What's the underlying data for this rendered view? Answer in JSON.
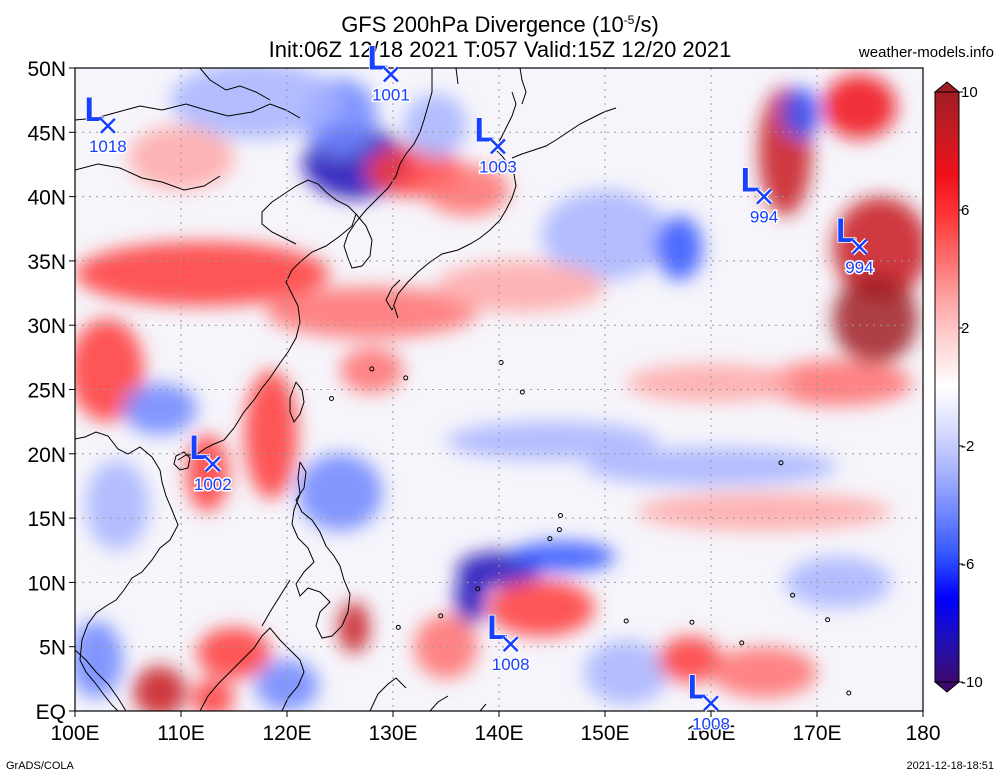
{
  "title": {
    "line1_prefix": "GFS 200hPa Divergence (10",
    "line1_exp": "-5",
    "line1_suffix": "/s)",
    "line2": "Init:06Z 12/18 2021 T:057 Valid:15Z 12/20 2021"
  },
  "site": "weather-models.info",
  "footer": {
    "left": "GrADS/COLA",
    "right": "2021-12-18-18:51"
  },
  "map": {
    "lon_range": [
      100,
      180
    ],
    "lat_range": [
      0,
      50
    ],
    "lon_ticks": [
      {
        "value": 100,
        "label": "100E"
      },
      {
        "value": 110,
        "label": "110E"
      },
      {
        "value": 120,
        "label": "120E"
      },
      {
        "value": 130,
        "label": "130E"
      },
      {
        "value": 140,
        "label": "140E"
      },
      {
        "value": 150,
        "label": "150E"
      },
      {
        "value": 160,
        "label": "160E"
      },
      {
        "value": 170,
        "label": "170E"
      },
      {
        "value": 180,
        "label": "180"
      }
    ],
    "lat_ticks": [
      {
        "value": 50,
        "label": "50N"
      },
      {
        "value": 45,
        "label": "45N"
      },
      {
        "value": 40,
        "label": "40N"
      },
      {
        "value": 35,
        "label": "35N"
      },
      {
        "value": 30,
        "label": "30N"
      },
      {
        "value": 25,
        "label": "25N"
      },
      {
        "value": 20,
        "label": "20N"
      },
      {
        "value": 15,
        "label": "15N"
      },
      {
        "value": 10,
        "label": "10N"
      },
      {
        "value": 5,
        "label": "5N"
      },
      {
        "value": 0,
        "label": "EQ"
      }
    ],
    "colors": {
      "positive": "#e8151b",
      "negative": "#1a2ce0",
      "coast": "#000000",
      "grid": "#9a9a9a"
    },
    "lows": [
      {
        "lon": 103.1,
        "lat": 45.5,
        "pressure": "1018"
      },
      {
        "lon": 129.8,
        "lat": 49.5,
        "pressure": "1001"
      },
      {
        "lon": 139.9,
        "lat": 43.9,
        "pressure": "1003"
      },
      {
        "lon": 165.0,
        "lat": 40.0,
        "pressure": "994"
      },
      {
        "lon": 174.0,
        "lat": 36.1,
        "pressure": "994"
      },
      {
        "lon": 113.0,
        "lat": 19.2,
        "pressure": "1002"
      },
      {
        "lon": 141.1,
        "lat": 5.2,
        "pressure": "1008"
      },
      {
        "lon": 160.0,
        "lat": 0.6,
        "pressure": "1008"
      }
    ],
    "field_blobs": [
      {
        "lon": 126.5,
        "lat": 42.6,
        "value": -9,
        "rlon": 5.0,
        "rlat": 2.8
      },
      {
        "lon": 125.0,
        "lat": 46.2,
        "value": -5,
        "rlon": 3.5,
        "rlat": 3.0
      },
      {
        "lon": 117.0,
        "lat": 47.5,
        "value": -3,
        "rlon": 8.0,
        "rlat": 3.0
      },
      {
        "lon": 132.0,
        "lat": 42.0,
        "value": 5,
        "rlon": 4.5,
        "rlat": 2.0
      },
      {
        "lon": 137.0,
        "lat": 40.5,
        "value": 4,
        "rlon": 4.0,
        "rlat": 2.0
      },
      {
        "lon": 150.0,
        "lat": 37.0,
        "value": -3,
        "rlon": 6.0,
        "rlat": 3.5
      },
      {
        "lon": 157.0,
        "lat": 36.0,
        "value": -6,
        "rlon": 2.2,
        "rlat": 2.5
      },
      {
        "lon": 167.0,
        "lat": 43.5,
        "value": 8,
        "rlon": 2.5,
        "rlat": 5.0
      },
      {
        "lon": 174.0,
        "lat": 47.0,
        "value": 7,
        "rlon": 3.5,
        "rlat": 2.5
      },
      {
        "lon": 168.5,
        "lat": 46.5,
        "value": -6,
        "rlon": 1.8,
        "rlat": 2.0
      },
      {
        "lon": 176.0,
        "lat": 36.0,
        "value": 8,
        "rlon": 4.5,
        "rlat": 4.0
      },
      {
        "lon": 175.5,
        "lat": 30.5,
        "value": 10,
        "rlon": 4.0,
        "rlat": 3.5
      },
      {
        "lon": 172.0,
        "lat": 25.5,
        "value": 4,
        "rlon": 7.0,
        "rlat": 1.8
      },
      {
        "lon": 160.0,
        "lat": 25.5,
        "value": 3,
        "rlon": 8.0,
        "rlat": 1.5
      },
      {
        "lon": 112.0,
        "lat": 34.0,
        "value": 5,
        "rlon": 12.0,
        "rlat": 2.5
      },
      {
        "lon": 128.0,
        "lat": 31.0,
        "value": 4,
        "rlon": 10.0,
        "rlat": 2.0
      },
      {
        "lon": 142.0,
        "lat": 33.0,
        "value": 3,
        "rlon": 8.0,
        "rlat": 2.0
      },
      {
        "lon": 103.0,
        "lat": 26.5,
        "value": 6,
        "rlon": 3.5,
        "rlat": 4.0
      },
      {
        "lon": 118.5,
        "lat": 21.5,
        "value": 6,
        "rlon": 2.5,
        "rlat": 5.0
      },
      {
        "lon": 112.5,
        "lat": 18.5,
        "value": 5,
        "rlon": 2.0,
        "rlat": 3.0
      },
      {
        "lon": 128.0,
        "lat": 26.5,
        "value": 4,
        "rlon": 3.0,
        "rlat": 1.8
      },
      {
        "lon": 108.0,
        "lat": 23.5,
        "value": -4,
        "rlon": 3.5,
        "rlat": 2.0
      },
      {
        "lon": 125.0,
        "lat": 17.0,
        "value": -4,
        "rlon": 4.0,
        "rlat": 3.0
      },
      {
        "lon": 145.0,
        "lat": 21.0,
        "value": -3,
        "rlon": 10.0,
        "rlat": 1.5
      },
      {
        "lon": 160.0,
        "lat": 19.0,
        "value": -3,
        "rlon": 12.0,
        "rlat": 1.5
      },
      {
        "lon": 165.0,
        "lat": 15.5,
        "value": 3,
        "rlon": 12.0,
        "rlat": 1.5
      },
      {
        "lon": 140.0,
        "lat": 11.0,
        "value": -8,
        "rlon": 4.0,
        "rlat": 1.4
      },
      {
        "lon": 146.0,
        "lat": 12.0,
        "value": -6,
        "rlon": 5.0,
        "rlat": 1.2
      },
      {
        "lon": 137.3,
        "lat": 8.7,
        "value": -9,
        "rlon": 1.5,
        "rlat": 2.0
      },
      {
        "lon": 144.0,
        "lat": 8.0,
        "value": 5,
        "rlon": 5.0,
        "rlat": 2.2
      },
      {
        "lon": 135.0,
        "lat": 5.0,
        "value": 4,
        "rlon": 3.0,
        "rlat": 2.5
      },
      {
        "lon": 126.3,
        "lat": 6.5,
        "value": 9,
        "rlon": 1.5,
        "rlat": 2.0
      },
      {
        "lon": 115.0,
        "lat": 4.5,
        "value": 5,
        "rlon": 3.5,
        "rlat": 2.0
      },
      {
        "lon": 108.0,
        "lat": 1.5,
        "value": 9,
        "rlon": 2.5,
        "rlat": 2.0
      },
      {
        "lon": 113.0,
        "lat": 1.0,
        "value": 6,
        "rlon": 2.0,
        "rlat": 1.5
      },
      {
        "lon": 102.0,
        "lat": 4.0,
        "value": -4,
        "rlon": 2.5,
        "rlat": 3.0
      },
      {
        "lon": 120.0,
        "lat": 2.0,
        "value": -4,
        "rlon": 3.0,
        "rlat": 2.0
      },
      {
        "lon": 152.0,
        "lat": 3.0,
        "value": -3,
        "rlon": 4.0,
        "rlat": 2.5
      },
      {
        "lon": 158.0,
        "lat": 4.0,
        "value": 5,
        "rlon": 3.0,
        "rlat": 1.8
      },
      {
        "lon": 165.0,
        "lat": 3.0,
        "value": 4,
        "rlon": 5.0,
        "rlat": 2.0
      },
      {
        "lon": 172.0,
        "lat": 10.0,
        "value": -3,
        "rlon": 5.0,
        "rlat": 2.0
      },
      {
        "lon": 104.0,
        "lat": 16.0,
        "value": -3,
        "rlon": 3.0,
        "rlat": 3.5
      },
      {
        "lon": 134.0,
        "lat": 45.5,
        "value": -3,
        "rlon": 3.0,
        "rlat": 2.5
      },
      {
        "lon": 110.0,
        "lat": 43.0,
        "value": 3,
        "rlon": 5.0,
        "rlat": 2.5
      }
    ]
  },
  "colorbar": {
    "range": [
      -10,
      10
    ],
    "labels": [
      {
        "value": 10,
        "label": "10"
      },
      {
        "value": 6,
        "label": "6"
      },
      {
        "value": 2,
        "label": "2"
      },
      {
        "value": -2,
        "label": "-2"
      },
      {
        "value": -6,
        "label": "-6"
      },
      {
        "value": -10,
        "label": "-10"
      }
    ],
    "colors": [
      "#3c0a6e",
      "#2010b8",
      "#0000ff",
      "#3355ff",
      "#6f86ff",
      "#a8b4ff",
      "#d8dcff",
      "#ffffff",
      "#ffd6d6",
      "#ffa8a8",
      "#ff7070",
      "#ff3a3a",
      "#f0101a",
      "#c81a22",
      "#a01c24"
    ]
  }
}
